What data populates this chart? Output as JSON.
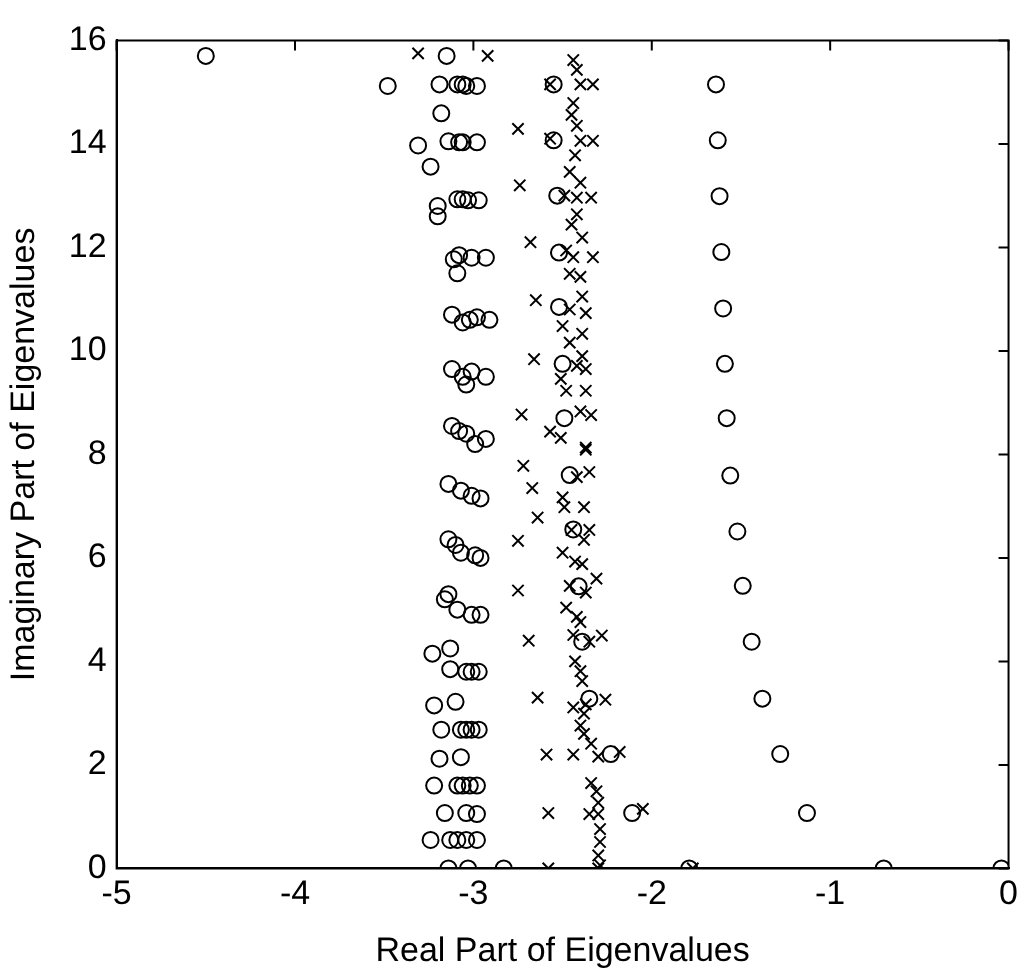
{
  "chart_data": {
    "type": "scatter",
    "xlabel": "Real Part of Eigenvalues",
    "ylabel": "Imaginary Part of Eigenvalues",
    "xlim": [
      -5,
      0
    ],
    "ylim": [
      0,
      16
    ],
    "xticks": [
      -5,
      -4,
      -3,
      -2,
      -1,
      0
    ],
    "yticks": [
      0,
      2,
      4,
      6,
      8,
      10,
      12,
      14,
      16
    ],
    "grid": false,
    "legend": false,
    "series": [
      {
        "color": "#000000",
        "marker": "circle",
        "x": [
          -4.5,
          -3.15,
          -3.48,
          -3.19,
          -3.09,
          -3.06,
          -3.04,
          -2.98,
          -3.18,
          -3.31,
          -3.14,
          -3.08,
          -3.06,
          -2.98,
          -3.24,
          -3.2,
          -3.2,
          -3.09,
          -3.06,
          -3.03,
          -2.97,
          -3.11,
          -3.08,
          -3.01,
          -2.93,
          -3.09,
          -3.12,
          -3.06,
          -3.02,
          -2.98,
          -2.91,
          -3.12,
          -3.06,
          -3.04,
          -3.01,
          -2.93,
          -3.12,
          -3.08,
          -3.04,
          -2.99,
          -2.93,
          -3.14,
          -3.07,
          -3.01,
          -2.96,
          -3.14,
          -3.1,
          -3.07,
          -2.99,
          -2.96,
          -3.16,
          -3.14,
          -3.09,
          -3.01,
          -2.96,
          -3.23,
          -3.13,
          -3.13,
          -3.04,
          -3.01,
          -2.97,
          -3.22,
          -3.1,
          -3.18,
          -3.07,
          -3.04,
          -3.01,
          -2.97,
          -3.19,
          -3.07,
          -3.22,
          -3.09,
          -3.06,
          -3.02,
          -2.98,
          -3.16,
          -3.04,
          -2.98,
          -3.24,
          -3.13,
          -3.09,
          -3.04,
          -2.98,
          -3.14,
          -3.03,
          -2.83,
          -2.55,
          -2.55,
          -2.53,
          -2.52,
          -2.52,
          -2.5,
          -2.49,
          -2.46,
          -2.44,
          -2.41,
          -2.39,
          -2.35,
          -2.23,
          -2.11,
          -1.79
        ],
        "values": [
          15.7,
          15.7,
          15.12,
          15.15,
          15.15,
          15.15,
          15.12,
          15.12,
          14.59,
          13.97,
          14.05,
          14.03,
          14.03,
          14.03,
          13.56,
          12.8,
          12.6,
          12.93,
          12.93,
          12.91,
          12.91,
          11.77,
          11.85,
          11.8,
          11.8,
          11.5,
          10.7,
          10.55,
          10.6,
          10.65,
          10.6,
          9.65,
          9.5,
          9.35,
          9.6,
          9.5,
          8.55,
          8.45,
          8.4,
          8.2,
          8.3,
          7.43,
          7.3,
          7.2,
          7.15,
          6.36,
          6.25,
          6.1,
          6.05,
          6.0,
          5.2,
          5.3,
          5.0,
          4.9,
          4.9,
          4.15,
          4.25,
          3.85,
          3.8,
          3.8,
          3.8,
          3.15,
          3.22,
          2.68,
          2.68,
          2.68,
          2.68,
          2.68,
          2.12,
          2.15,
          1.6,
          1.6,
          1.6,
          1.6,
          1.6,
          1.07,
          1.07,
          1.05,
          0.55,
          0.55,
          0.55,
          0.55,
          0.55,
          0,
          0,
          0,
          15.15,
          14.07,
          13.0,
          11.9,
          10.85,
          9.75,
          8.7,
          7.6,
          6.55,
          5.45,
          4.38,
          3.28,
          2.21,
          1.07,
          0
        ]
      },
      {
        "color": "#000000",
        "marker": "cross",
        "x": [
          -3.31,
          -2.92,
          -2.75,
          -2.74,
          -2.68,
          -2.65,
          -2.66,
          -2.73,
          -2.72,
          -2.67,
          -2.64,
          -2.75,
          -2.75,
          -2.69,
          -2.64,
          -2.59,
          -2.58,
          -2.58,
          -2.44,
          -2.44,
          -2.44,
          -2.42,
          -2.57,
          -2.4,
          -2.33,
          -2.44,
          -2.45,
          -2.42,
          -2.57,
          -2.4,
          -2.33,
          -2.43,
          -2.46,
          -2.4,
          -2.49,
          -2.42,
          -2.34,
          -2.42,
          -2.45,
          -2.39,
          -2.48,
          -2.44,
          -2.33,
          -2.46,
          -2.4,
          -2.39,
          -2.46,
          -2.37,
          -2.5,
          -2.39,
          -2.46,
          -2.39,
          -2.42,
          -2.37,
          -2.51,
          -2.48,
          -2.37,
          -2.4,
          -2.34,
          -2.57,
          -2.51,
          -2.37,
          -2.37,
          -2.42,
          -2.35,
          -2.5,
          -2.49,
          -2.38,
          -2.45,
          -2.35,
          -2.38,
          -2.5,
          -2.43,
          -2.39,
          -2.46,
          -2.37,
          -2.31,
          -2.48,
          -2.42,
          -2.4,
          -2.44,
          -2.28,
          -2.35,
          -2.43,
          -2.4,
          -2.39,
          -2.26,
          -2.37,
          -2.38,
          -2.4,
          -2.38,
          -2.34,
          -2.3,
          -2.18,
          -2.34,
          -2.31,
          -2.3,
          -2.35,
          -2.3,
          -2.05,
          -2.29,
          -2.29,
          -2.3,
          -2.29,
          -2.3,
          -1.77
        ],
        "values": [
          15.75,
          15.7,
          14.29,
          13.2,
          12.1,
          10.98,
          9.84,
          8.77,
          7.78,
          7.35,
          6.78,
          6.33,
          5.37,
          4.4,
          3.3,
          2.2,
          1.07,
          0,
          3.11,
          2.2,
          15.62,
          15.43,
          15.15,
          15.15,
          15.15,
          14.79,
          14.56,
          14.35,
          14.1,
          14.06,
          14.06,
          13.78,
          13.46,
          13.25,
          13.0,
          12.96,
          12.96,
          12.64,
          12.44,
          12.19,
          11.94,
          11.81,
          11.81,
          11.49,
          11.43,
          11.05,
          10.8,
          10.73,
          10.48,
          10.33,
          10.16,
          9.9,
          9.71,
          9.65,
          9.46,
          9.23,
          9.23,
          8.83,
          8.76,
          8.44,
          8.32,
          8.13,
          8.09,
          7.56,
          7.66,
          7.17,
          6.98,
          6.98,
          6.54,
          6.54,
          6.35,
          6.1,
          5.93,
          5.88,
          5.46,
          5.33,
          5.6,
          5.04,
          4.86,
          4.76,
          4.51,
          4.5,
          4.38,
          4.0,
          3.81,
          3.62,
          3.26,
          3.17,
          2.99,
          2.76,
          2.6,
          2.41,
          2.16,
          2.25,
          1.65,
          1.49,
          1.27,
          1.05,
          1.05,
          1.15,
          0.76,
          0.51,
          0.25,
          0.06,
          0,
          0
        ]
      },
      {
        "color": "#000000",
        "marker": "circle",
        "x": [
          -0.04,
          -0.7,
          -1.13,
          -1.28,
          -1.38,
          -1.44,
          -1.49,
          -1.52,
          -1.56,
          -1.58,
          -1.59,
          -1.6,
          -1.61,
          -1.62,
          -1.63,
          -1.64
        ],
        "values": [
          0,
          0,
          1.07,
          2.21,
          3.28,
          4.38,
          5.46,
          6.51,
          7.59,
          8.7,
          9.75,
          10.82,
          11.91,
          12.99,
          14.07,
          15.15
        ]
      }
    ]
  }
}
